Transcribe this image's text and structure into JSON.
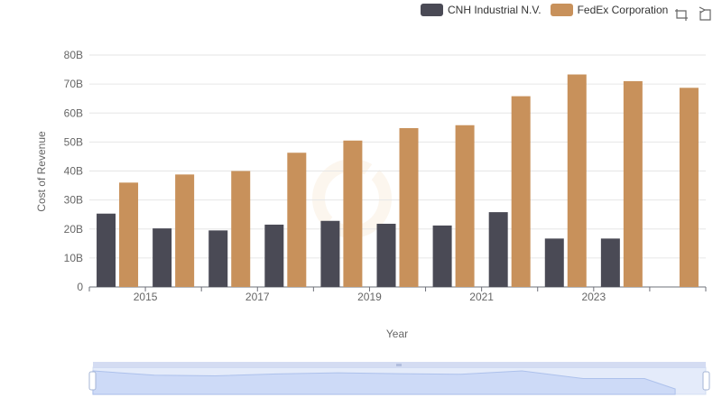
{
  "legend": {
    "series": [
      {
        "name": "CNH Industrial N.V.",
        "color": "#4a4a55"
      },
      {
        "name": "FedEx Corporation",
        "color": "#c8915b"
      }
    ]
  },
  "toolbox": {
    "icons": [
      "zoom-icon",
      "restore-icon"
    ]
  },
  "chart_data": {
    "type": "bar",
    "title": "",
    "xlabel": "Year",
    "ylabel": "Cost of Revenue",
    "categories": [
      "2014",
      "2015",
      "2016",
      "2017",
      "2018",
      "2019",
      "2020",
      "2021",
      "2022",
      "2023",
      "2024"
    ],
    "x_tick_labels": [
      "2015",
      "2017",
      "2019",
      "2021",
      "2023"
    ],
    "y_tick_labels": [
      "0",
      "10B",
      "20B",
      "30B",
      "40B",
      "50B",
      "60B",
      "70B",
      "80B"
    ],
    "ylim": [
      0,
      80
    ],
    "unit": "B",
    "grid": true,
    "legend_position": "top-right",
    "series": [
      {
        "name": "CNH Industrial N.V.",
        "color": "#4a4a55",
        "values": [
          25.3,
          20.2,
          19.5,
          21.5,
          22.8,
          21.8,
          21.2,
          25.8,
          16.7,
          16.7,
          null
        ]
      },
      {
        "name": "FedEx Corporation",
        "color": "#c8915b",
        "values": [
          36.0,
          38.8,
          40.0,
          46.3,
          50.5,
          54.8,
          55.8,
          65.8,
          73.3,
          71.0,
          68.7
        ]
      }
    ],
    "datazoom": {
      "start": 0,
      "end": 100
    }
  }
}
